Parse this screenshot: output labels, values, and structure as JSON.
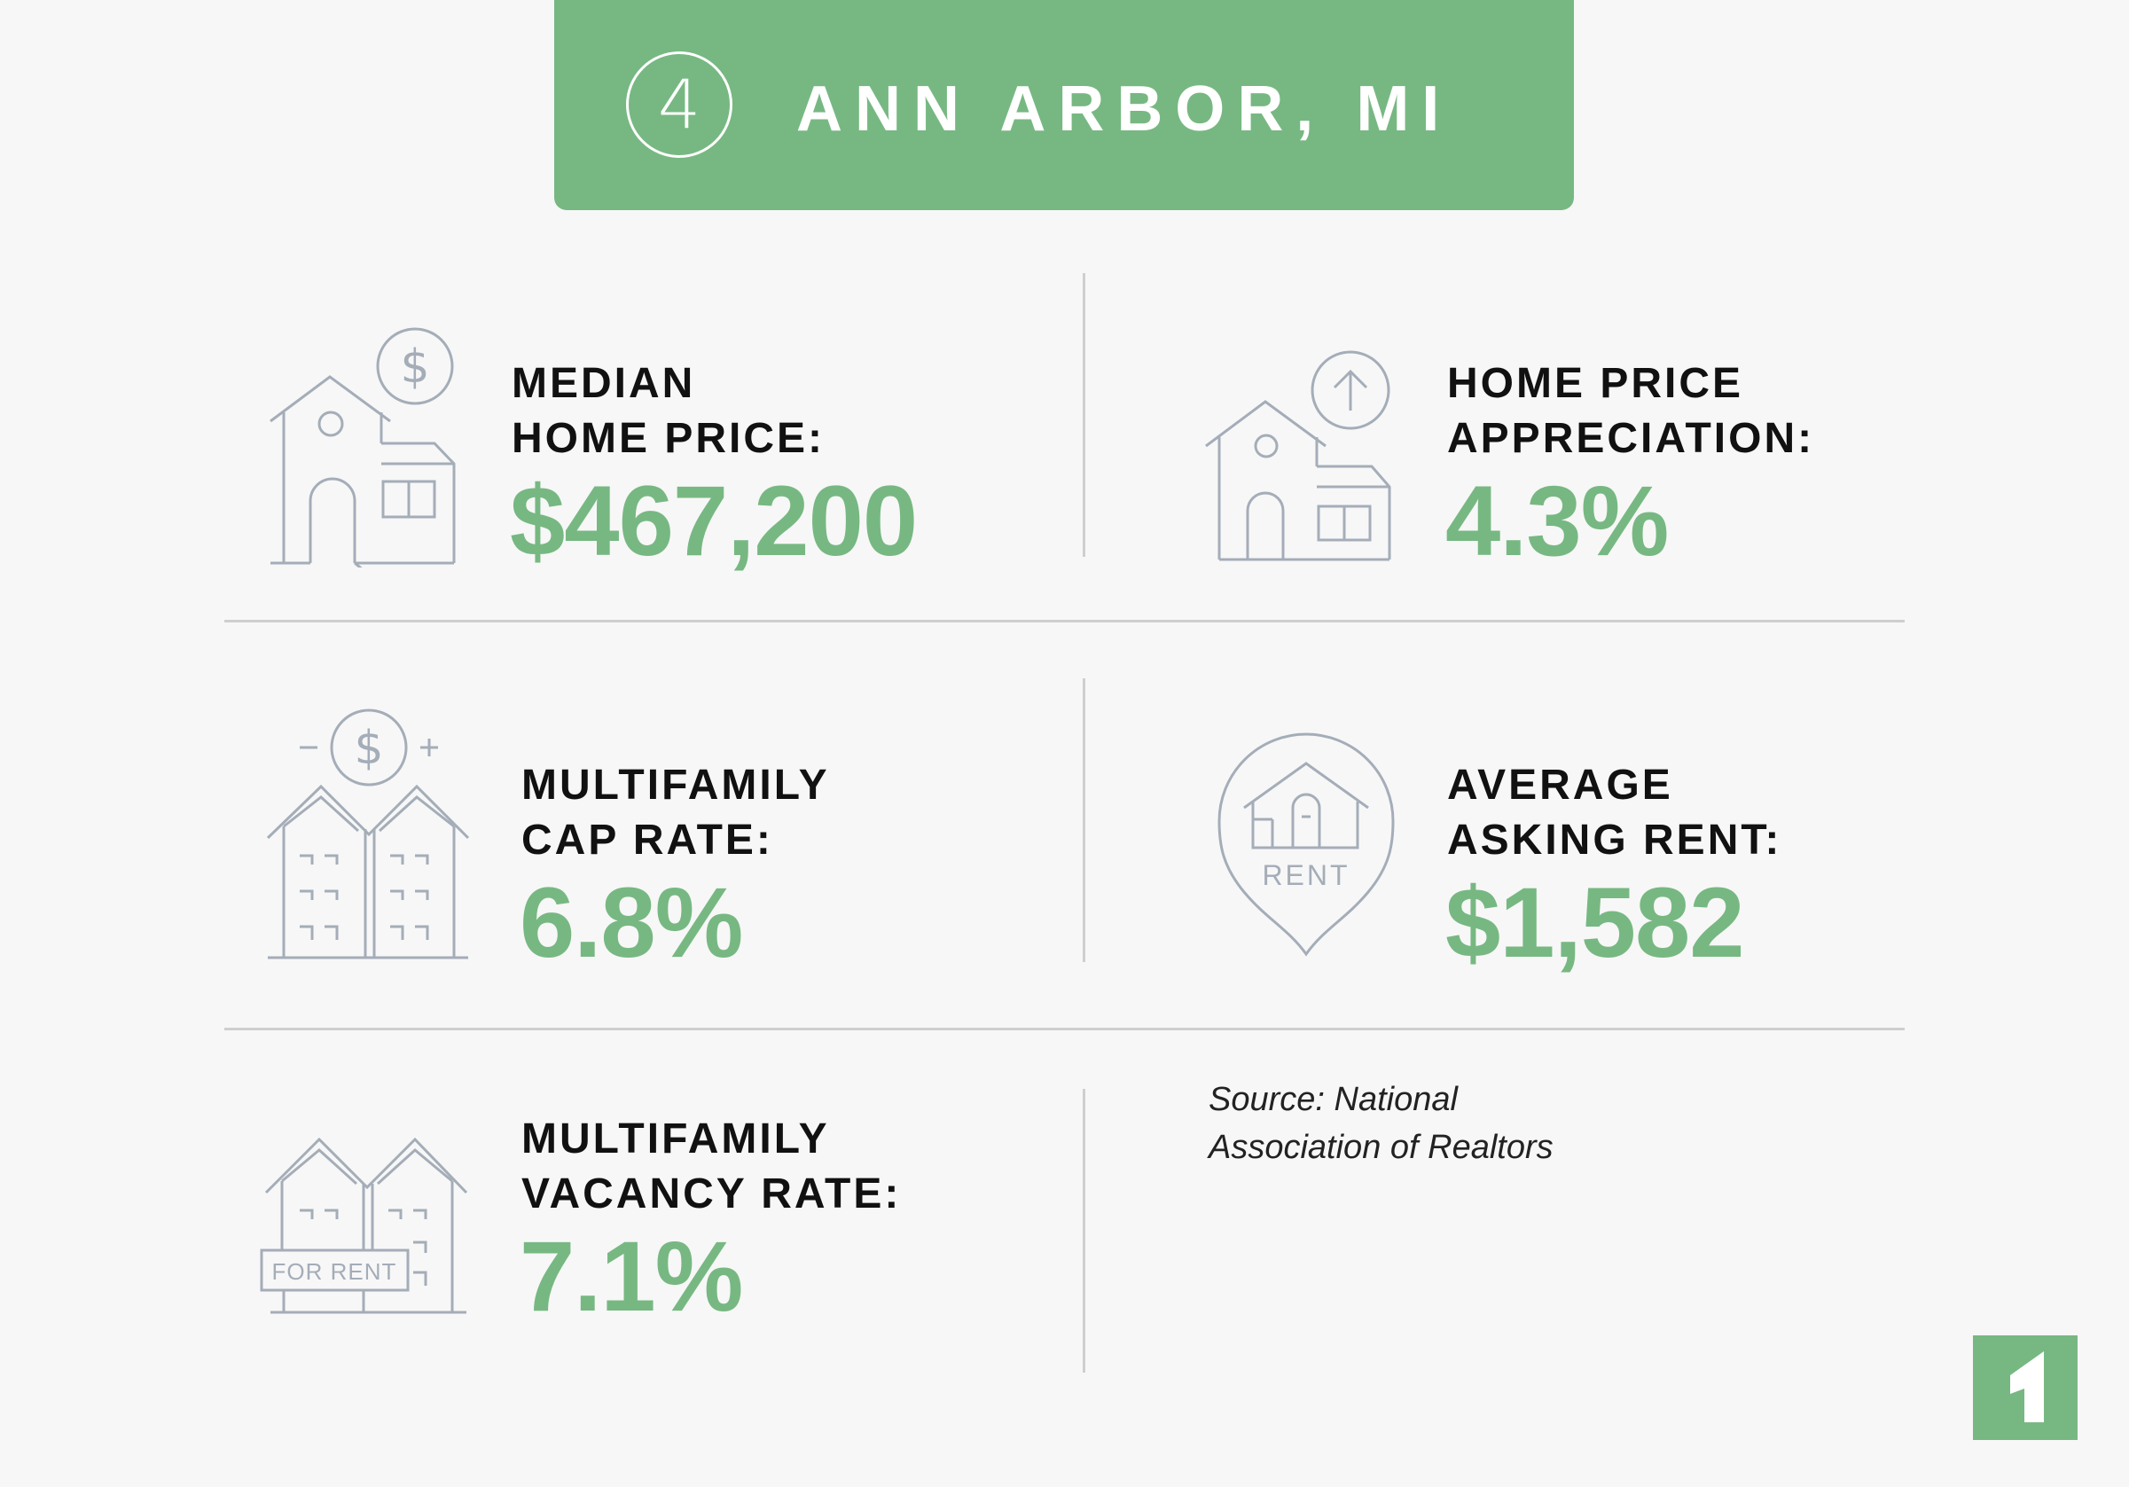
{
  "header": {
    "rank": "4",
    "city": "ANN ARBOR, MI"
  },
  "stats": {
    "median_home_price": {
      "label_line1": "MEDIAN",
      "label_line2": "HOME PRICE:",
      "value": "$467,200",
      "icon": "house-dollar-icon"
    },
    "home_price_appreciation": {
      "label_line1": "HOME PRICE",
      "label_line2": "APPRECIATION:",
      "value": "4.3%",
      "icon": "house-arrow-up-icon"
    },
    "multifamily_cap_rate": {
      "label_line1": "MULTIFAMILY",
      "label_line2": "CAP RATE:",
      "value": "6.8%",
      "icon": "multifamily-dollar-icon"
    },
    "average_asking_rent": {
      "label_line1": "AVERAGE",
      "label_line2": "ASKING RENT:",
      "value": "$1,582",
      "icon": "rent-pin-icon",
      "icon_text": "RENT"
    },
    "multifamily_vacancy_rate": {
      "label_line1": "MULTIFAMILY",
      "label_line2": "VACANCY RATE:",
      "value": "7.1%",
      "icon": "for-rent-building-icon",
      "icon_text": "FOR RENT"
    }
  },
  "source": {
    "line1": "Source: National",
    "line2": "Association of Realtors"
  },
  "colors": {
    "accent": "#77b882",
    "background": "#f7f7f7",
    "icon_stroke": "#a4adb8",
    "divider": "#cfcfcf",
    "text": "#111111"
  }
}
